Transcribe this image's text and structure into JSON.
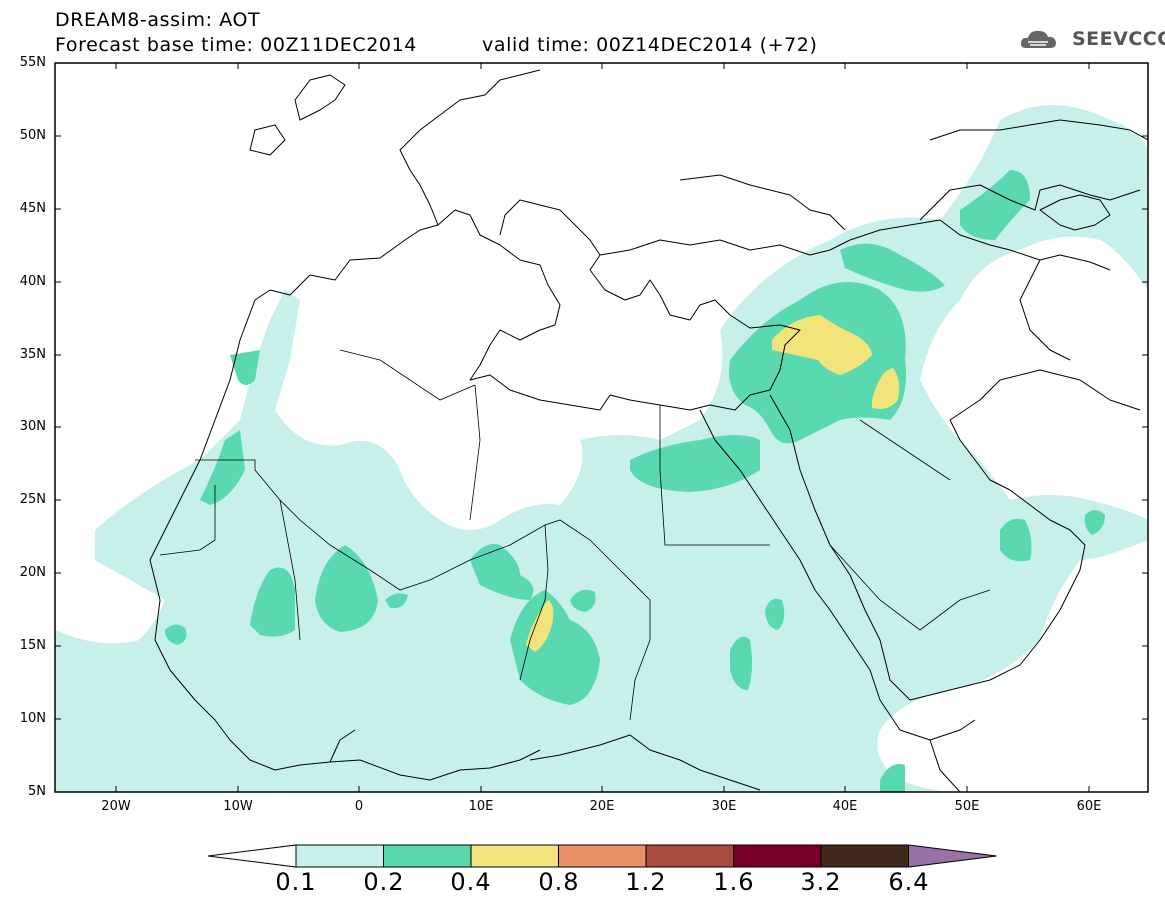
{
  "header": {
    "title": "DREAM8-assim: AOT",
    "base_time": "Forecast base time: 00Z11DEC2014",
    "valid_time": "valid time: 00Z14DEC2014 (+72)"
  },
  "logo": {
    "text": "SEEVCCC",
    "icon": "cloud-logo-icon"
  },
  "axes": {
    "lat_labels": [
      "55N",
      "50N",
      "45N",
      "40N",
      "35N",
      "30N",
      "25N",
      "20N",
      "15N",
      "10N",
      "5N"
    ],
    "lon_labels": [
      "20W",
      "10W",
      "0",
      "10E",
      "20E",
      "30E",
      "40E",
      "50E",
      "60E"
    ]
  },
  "colorbar": {
    "labels": [
      "0.1",
      "0.2",
      "0.4",
      "0.8",
      "1.2",
      "1.6",
      "3.2",
      "6.4"
    ],
    "colors": [
      "#ffffff",
      "#c8f0ea",
      "#5ad8b0",
      "#f2e47a",
      "#e8906a",
      "#a84a3e",
      "#780028",
      "#40281a",
      "#9a70a8"
    ]
  },
  "palette": {
    "frame": "#000000",
    "land_border": "#000000",
    "low": "#c8f0ea",
    "mid": "#5ad8b0",
    "high": "#f2e47a"
  }
}
